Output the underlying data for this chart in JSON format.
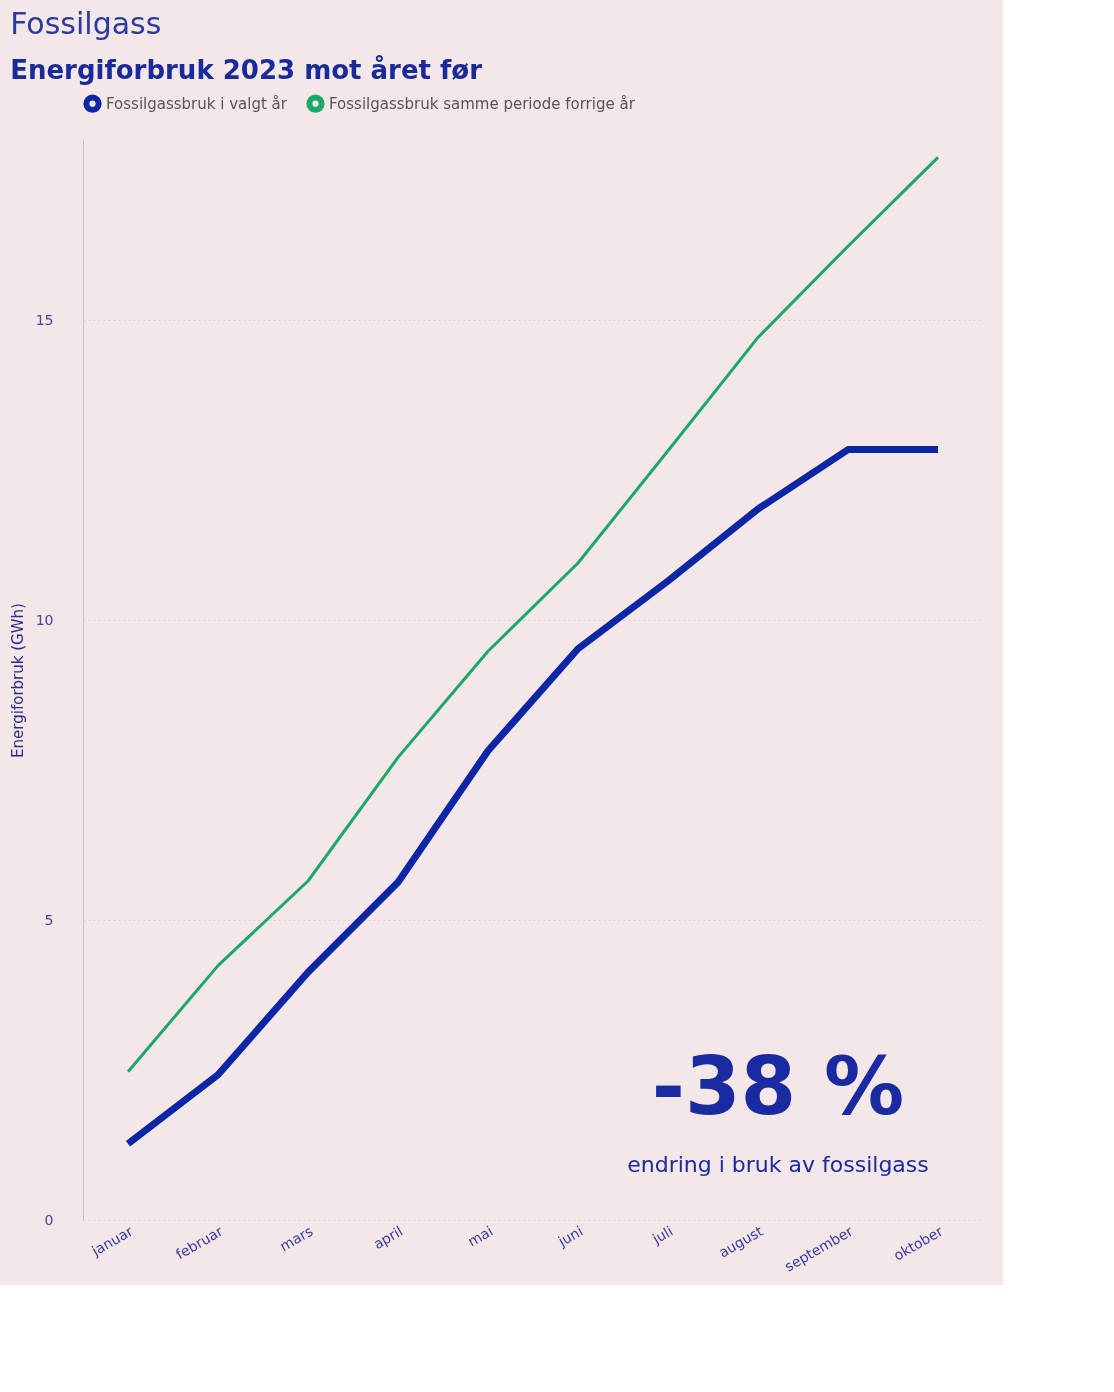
{
  "chart_data": {
    "type": "line",
    "title": "Fossilgass",
    "subtitle": "Energiforbruk 2023 mot året før",
    "ylabel": "Energiforbruk (GWh)",
    "categories": [
      "januar",
      "februar",
      "mars",
      "april",
      "mai",
      "juni",
      "juli",
      "august",
      "september",
      "oktober"
    ],
    "series": [
      {
        "name": "Fossilgassbruk i valgt år",
        "color": "#0b27a6",
        "values": [
          1.27,
          2.42,
          4.13,
          5.63,
          7.82,
          9.52,
          10.65,
          11.85,
          12.84,
          12.84
        ]
      },
      {
        "name": "Fossilgassbruk samme periode forrige år",
        "color": "#1aa86a",
        "values": [
          2.47,
          4.24,
          5.65,
          7.71,
          9.48,
          10.95,
          12.82,
          14.71,
          16.23,
          17.71
        ]
      }
    ],
    "ylim": [
      0,
      18
    ],
    "yticks": [
      0,
      5,
      10,
      15
    ],
    "grid": "y",
    "legend": "top left",
    "marker": "none",
    "line_style": "solid",
    "annotations": [
      "-38 %",
      "endring i bruk av fossilgass"
    ]
  }
}
